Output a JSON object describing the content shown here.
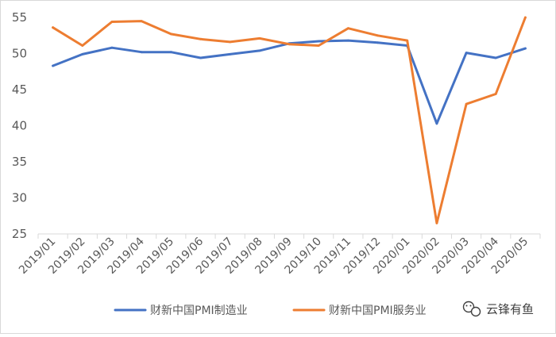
{
  "chart_data": {
    "type": "line",
    "title": "",
    "xlabel": "",
    "ylabel": "",
    "categories": [
      "2019/01",
      "2019/02",
      "2019/03",
      "2019/04",
      "2019/05",
      "2019/06",
      "2019/07",
      "2019/08",
      "2019/09",
      "2019/10",
      "2019/11",
      "2019/12",
      "2020/01",
      "2020/02",
      "2020/03",
      "2020/04",
      "2020/05"
    ],
    "ylim": [
      25,
      55
    ],
    "yticks": [
      25,
      30,
      35,
      40,
      45,
      50,
      55
    ],
    "grid": false,
    "legend_position": "bottom",
    "series": [
      {
        "name": "财新中国PMI制造业",
        "color": "#4472C4",
        "values": [
          48.3,
          49.9,
          50.8,
          50.2,
          50.2,
          49.4,
          49.9,
          50.4,
          51.4,
          51.7,
          51.8,
          51.5,
          51.1,
          40.3,
          50.1,
          49.4,
          50.7
        ]
      },
      {
        "name": "财新中国PMI服务业",
        "color": "#ED7D31",
        "values": [
          53.6,
          51.1,
          54.4,
          54.5,
          52.7,
          52.0,
          51.6,
          52.1,
          51.3,
          51.1,
          53.5,
          52.5,
          51.8,
          26.5,
          43.0,
          44.4,
          55.0
        ]
      }
    ]
  },
  "watermark": {
    "text": "云锋有鱼",
    "icon": "wechat-icon"
  }
}
